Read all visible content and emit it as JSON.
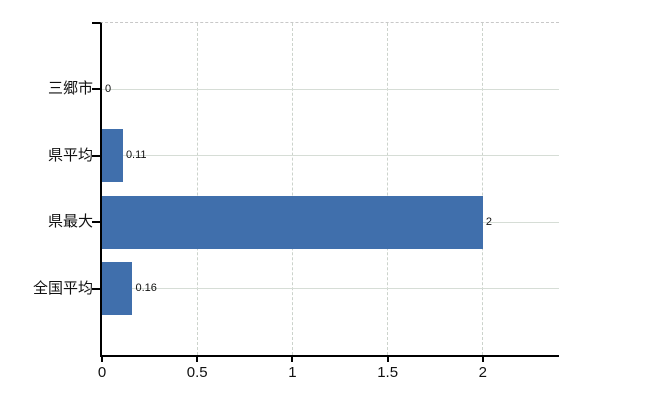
{
  "chart_data": {
    "type": "bar",
    "orientation": "horizontal",
    "categories": [
      "三郷市",
      "県平均",
      "県最大",
      "全国平均"
    ],
    "values": [
      0,
      0.11,
      2,
      0.16
    ],
    "value_labels": [
      "0",
      "0.11",
      "2",
      "0.16"
    ],
    "x_axis": {
      "ticks": [
        0,
        0.5,
        1,
        1.5,
        2
      ],
      "tick_labels": [
        "0",
        "0.5",
        "1",
        "1.5",
        "2"
      ],
      "range": [
        0,
        2.4
      ]
    },
    "xlabel": "",
    "ylabel": "",
    "title": "",
    "legend": false,
    "grid": true,
    "colors": {
      "bar": "#406fac",
      "axis": "#000000",
      "hgrid": "#d6ddd6",
      "vgrid": "#ccd3cc",
      "plot_top_border": "#c8c8c8",
      "text": "#111111",
      "background": "#ffffff"
    }
  }
}
